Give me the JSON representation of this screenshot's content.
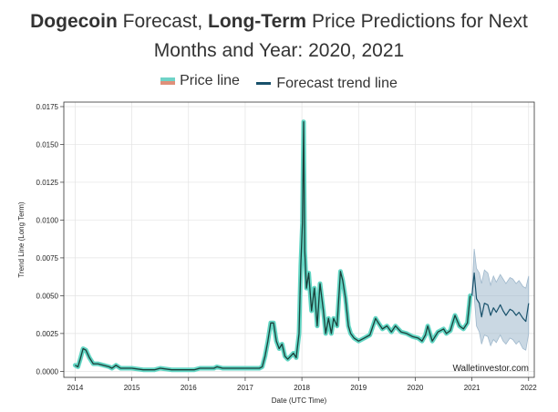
{
  "title": {
    "bold1": "Dogecoin",
    "part1": " Forecast, ",
    "bold2": "Long-Term",
    "part2": " Price Predictions for Next",
    "line2": "Months and Year: 2020, 2021"
  },
  "legend": {
    "price_label": "Price line",
    "forecast_label": "Forecast trend line"
  },
  "colors": {
    "price_top": "#6fd3c7",
    "price_bottom": "#e0907a",
    "price_glow": "#63d6c4",
    "price_line": "#1b3f3a",
    "forecast_line": "#18516b",
    "forecast_band": "#9fb8cc"
  },
  "watermark": "Walletinvestor.com",
  "chart_data": {
    "type": "line",
    "xlabel": "Date (UTC Time)",
    "ylabel": "Trend Line (Long Term)",
    "xlim": [
      2013.8,
      2022.1
    ],
    "ylim": [
      -0.0004,
      0.0178
    ],
    "x_ticks": [
      "2014",
      "2015",
      "2016",
      "2017",
      "2018",
      "2019",
      "2020",
      "2021",
      "2022"
    ],
    "y_ticks": [
      "0.0000",
      "0.0025",
      "0.0050",
      "0.0075",
      "0.0100",
      "0.0125",
      "0.0150",
      "0.0175"
    ],
    "grid": true,
    "series": [
      {
        "name": "Price line",
        "x": [
          2014.0,
          2014.05,
          2014.09,
          2014.14,
          2014.19,
          2014.25,
          2014.32,
          2014.4,
          2014.5,
          2014.6,
          2014.65,
          2014.72,
          2014.8,
          2015.0,
          2015.2,
          2015.4,
          2015.5,
          2015.7,
          2015.9,
          2016.1,
          2016.2,
          2016.3,
          2016.45,
          2016.5,
          2016.6,
          2016.8,
          2017.0,
          2017.15,
          2017.25,
          2017.3,
          2017.35,
          2017.4,
          2017.45,
          2017.5,
          2017.55,
          2017.6,
          2017.65,
          2017.7,
          2017.75,
          2017.8,
          2017.85,
          2017.9,
          2017.95,
          2017.98,
          2018.01,
          2018.03,
          2018.05,
          2018.08,
          2018.12,
          2018.17,
          2018.22,
          2018.27,
          2018.32,
          2018.38,
          2018.42,
          2018.47,
          2018.52,
          2018.56,
          2018.62,
          2018.68,
          2018.72,
          2018.77,
          2018.82,
          2018.86,
          2018.92,
          2019.0,
          2019.1,
          2019.2,
          2019.3,
          2019.35,
          2019.42,
          2019.5,
          2019.58,
          2019.65,
          2019.75,
          2019.85,
          2019.95,
          2020.05,
          2020.12,
          2020.18,
          2020.22,
          2020.3,
          2020.4,
          2020.5,
          2020.55,
          2020.62,
          2020.7,
          2020.78,
          2020.85,
          2020.92,
          2020.97
        ],
        "values": [
          0.0004,
          0.0003,
          0.0008,
          0.0015,
          0.0014,
          0.0009,
          0.0005,
          0.0005,
          0.0004,
          0.0003,
          0.0002,
          0.0004,
          0.0002,
          0.0002,
          0.0001,
          0.0001,
          0.0002,
          0.0001,
          0.0001,
          0.0001,
          0.0002,
          0.0002,
          0.0002,
          0.0003,
          0.0002,
          0.0002,
          0.0002,
          0.0002,
          0.0002,
          0.0003,
          0.001,
          0.002,
          0.0032,
          0.0032,
          0.002,
          0.0015,
          0.0018,
          0.001,
          0.0008,
          0.001,
          0.0012,
          0.0009,
          0.0025,
          0.007,
          0.0098,
          0.0165,
          0.008,
          0.0055,
          0.0065,
          0.004,
          0.0055,
          0.003,
          0.0058,
          0.004,
          0.0025,
          0.0035,
          0.0025,
          0.0035,
          0.003,
          0.0066,
          0.006,
          0.0048,
          0.003,
          0.0025,
          0.0022,
          0.002,
          0.0022,
          0.0024,
          0.0035,
          0.0032,
          0.0028,
          0.003,
          0.0026,
          0.003,
          0.0026,
          0.0025,
          0.0023,
          0.0022,
          0.002,
          0.0024,
          0.003,
          0.002,
          0.0026,
          0.0028,
          0.0025,
          0.0027,
          0.0037,
          0.003,
          0.0028,
          0.0032,
          0.005
        ]
      },
      {
        "name": "Forecast trend line",
        "x": [
          2021.0,
          2021.04,
          2021.08,
          2021.13,
          2021.17,
          2021.22,
          2021.28,
          2021.33,
          2021.38,
          2021.43,
          2021.5,
          2021.55,
          2021.6,
          2021.67,
          2021.72,
          2021.78,
          2021.83,
          2021.9,
          2021.95,
          2022.0
        ],
        "values": [
          0.005,
          0.0065,
          0.0048,
          0.0045,
          0.0036,
          0.0045,
          0.0044,
          0.0037,
          0.0042,
          0.0039,
          0.0044,
          0.004,
          0.0037,
          0.0041,
          0.004,
          0.0037,
          0.0039,
          0.0035,
          0.0033,
          0.0045
        ],
        "band_upper": [
          0.005,
          0.0081,
          0.0068,
          0.0065,
          0.0058,
          0.0067,
          0.0065,
          0.0057,
          0.0063,
          0.0059,
          0.0064,
          0.0061,
          0.0058,
          0.0062,
          0.0061,
          0.0058,
          0.006,
          0.0056,
          0.0055,
          0.0063
        ],
        "band_lower": [
          0.005,
          0.005,
          0.003,
          0.0026,
          0.0018,
          0.0024,
          0.0023,
          0.0017,
          0.0021,
          0.0019,
          0.0024,
          0.002,
          0.0018,
          0.0022,
          0.0021,
          0.0018,
          0.002,
          0.0015,
          0.0014,
          0.0025
        ]
      }
    ]
  }
}
